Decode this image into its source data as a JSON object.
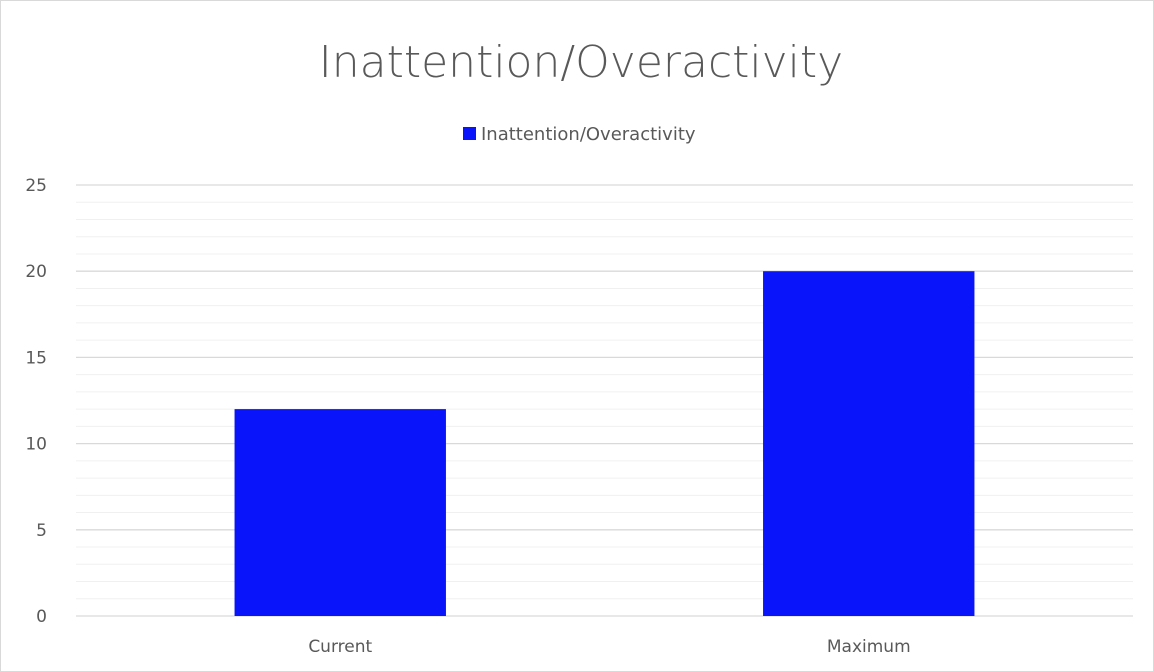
{
  "chart_data": {
    "type": "bar",
    "title": "Inattention/Overactivity",
    "categories": [
      "Current",
      "Maximum"
    ],
    "series": [
      {
        "name": "Inattention/Overactivity",
        "values": [
          12,
          20
        ],
        "color": "#0a14fa"
      }
    ],
    "ylim": [
      0,
      25
    ],
    "y_ticks": [
      "0",
      "5",
      "10",
      "15",
      "20",
      "25"
    ],
    "y_major_step": 5,
    "y_minor_step": 1,
    "grid": true,
    "legend_position": "top",
    "gridline_color": "#d9d9d9",
    "minor_gridline_color": "#f0f0f0"
  }
}
